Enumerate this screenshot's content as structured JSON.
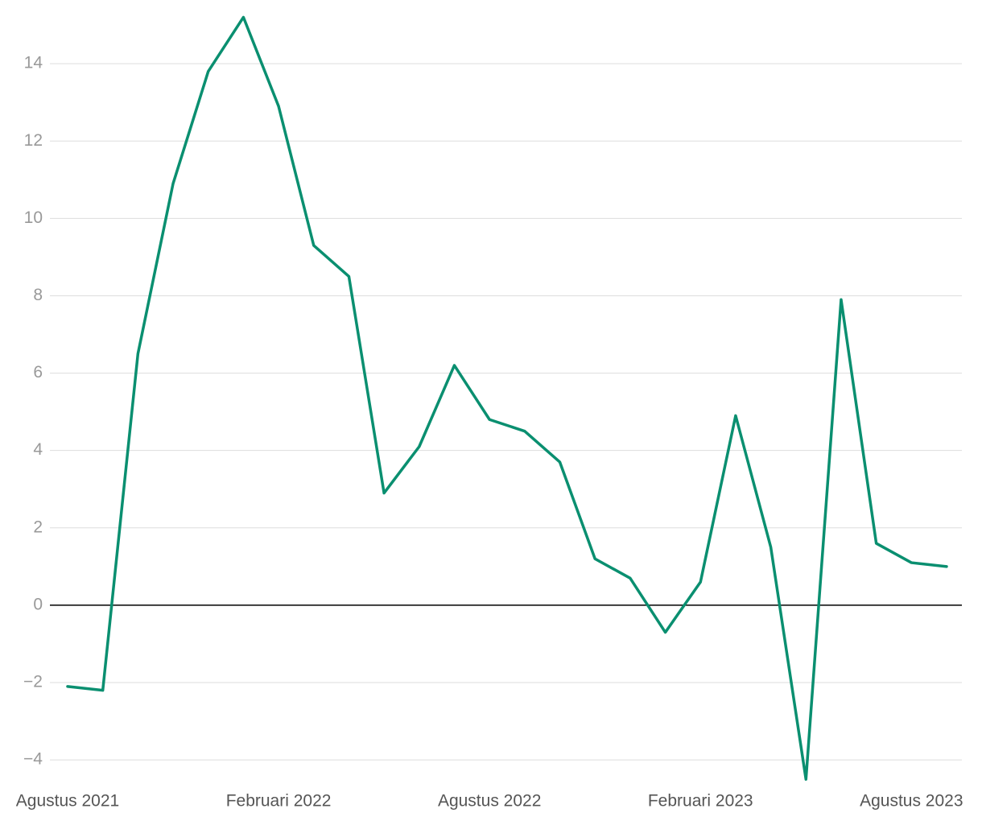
{
  "chart_data": {
    "type": "line",
    "categories": [
      "Agustus 2021",
      null,
      null,
      null,
      null,
      null,
      "Februari 2022",
      null,
      null,
      null,
      null,
      null,
      "Agustus 2022",
      null,
      null,
      null,
      null,
      null,
      "Februari 2023",
      null,
      null,
      null,
      null,
      null,
      "Agustus 2023",
      null
    ],
    "series": [
      {
        "color": "#0a8f70",
        "values": [
          -2.1,
          -2.2,
          6.5,
          10.9,
          13.8,
          15.2,
          12.9,
          9.3,
          8.5,
          2.9,
          4.1,
          6.2,
          4.8,
          4.5,
          3.7,
          1.2,
          0.7,
          -0.7,
          0.6,
          4.9,
          1.5,
          -4.5,
          7.9,
          1.6,
          1.1,
          1.0
        ]
      }
    ],
    "ylim": [
      -4.6,
      15.5
    ],
    "yticks": [
      {
        "value": -4,
        "label": "−4"
      },
      {
        "value": -2,
        "label": "−2"
      },
      0,
      2,
      4,
      6,
      8,
      10,
      12,
      14
    ],
    "grid": true
  }
}
